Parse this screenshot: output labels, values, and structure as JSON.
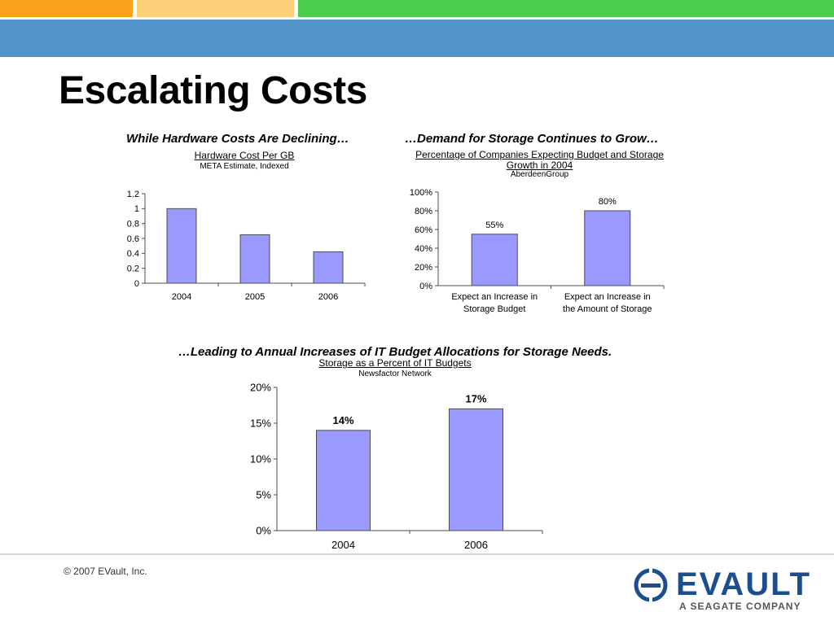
{
  "slide": {
    "title": "Escalating Costs"
  },
  "colors": {
    "bar_fill": "#9999ff",
    "bar_stroke": "#4d4d4d",
    "top_orange": "#fba21a",
    "top_yellow": "#fdd07a",
    "top_green": "#4ccc4c",
    "band_blue": "#5294c9",
    "logo_blue": "#1b4e8f"
  },
  "charts": {
    "hardware": {
      "heading": "While Hardware Costs Are Declining…",
      "subtitle": "Hardware Cost Per GB",
      "source": "META Estimate, Indexed"
    },
    "demand": {
      "heading": "…Demand for Storage Continues to Grow…",
      "subtitle_line1": "Percentage of Companies Expecting Budget and Storage",
      "subtitle_line2": "Growth in 2004",
      "source": "AberdeenGroup"
    },
    "budget": {
      "heading": "…Leading to Annual Increases of IT Budget Allocations for Storage Needs.",
      "subtitle": "Storage as a Percent of IT Budgets",
      "source": "Newsfactor Network"
    }
  },
  "chart_data": [
    {
      "type": "bar",
      "title": "Hardware Cost Per GB",
      "categories": [
        "2004",
        "2005",
        "2006"
      ],
      "values": [
        1.0,
        0.65,
        0.42
      ],
      "ylim": [
        0,
        1.2
      ],
      "yticks": [
        "0",
        "0.2",
        "0.4",
        "0.6",
        "0.8",
        "1",
        "1.2"
      ],
      "grid": false,
      "data_labels": []
    },
    {
      "type": "bar",
      "title": "Percentage of Companies Expecting Budget and Storage Growth in 2004",
      "categories": [
        [
          "Expect an Increase in",
          "Storage Budget"
        ],
        [
          "Expect an Increase in",
          "the Amount of Storage"
        ]
      ],
      "values": [
        55,
        80
      ],
      "ylim": [
        0,
        100
      ],
      "yticks": [
        "0%",
        "20%",
        "40%",
        "60%",
        "80%",
        "100%"
      ],
      "grid": false,
      "data_labels": [
        "55%",
        "80%"
      ]
    },
    {
      "type": "bar",
      "title": "Storage as a Percent of IT Budgets",
      "categories": [
        "2004",
        "2006"
      ],
      "values": [
        14,
        17
      ],
      "ylim": [
        0,
        20
      ],
      "yticks": [
        "0%",
        "5%",
        "10%",
        "15%",
        "20%"
      ],
      "grid": false,
      "data_labels": [
        "14%",
        "17%"
      ]
    }
  ],
  "footer": {
    "copyright": "© 2007  EVault, Inc.",
    "logo_word": "EVAULT",
    "logo_tagline": "A SEAGATE COMPANY",
    "logo_icon": "evault-mark-icon"
  }
}
